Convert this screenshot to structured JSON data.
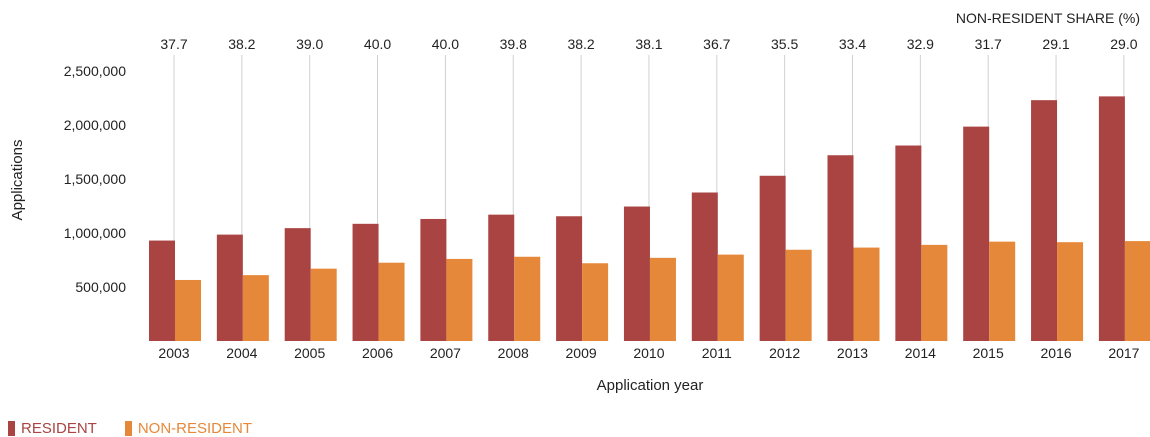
{
  "chart_data": {
    "type": "bar",
    "categories": [
      "2003",
      "2004",
      "2005",
      "2006",
      "2007",
      "2008",
      "2009",
      "2010",
      "2011",
      "2012",
      "2013",
      "2014",
      "2015",
      "2016",
      "2017"
    ],
    "series": [
      {
        "name": "RESIDENT",
        "color": "#a94442",
        "values": [
          930000,
          985000,
          1045000,
          1085000,
          1130000,
          1170000,
          1155000,
          1245000,
          1375000,
          1530000,
          1720000,
          1810000,
          1985000,
          2230000,
          2265000
        ]
      },
      {
        "name": "NON-RESIDENT",
        "color": "#e6883a",
        "values": [
          565000,
          610000,
          670000,
          725000,
          760000,
          780000,
          720000,
          770000,
          800000,
          845000,
          865000,
          890000,
          920000,
          915000,
          925000
        ]
      }
    ],
    "share_label": "NON-RESIDENT SHARE (%)",
    "share_values": [
      "37.7",
      "38.2",
      "39.0",
      "40.0",
      "40.0",
      "39.8",
      "38.2",
      "38.1",
      "36.7",
      "35.5",
      "33.4",
      "32.9",
      "31.7",
      "29.1",
      "29.0"
    ],
    "xlabel": "Application year",
    "ylabel": "Applications",
    "y_ticks": [
      500000,
      1000000,
      1500000,
      2000000,
      2500000
    ],
    "y_tick_labels": [
      "500,000",
      "1,000,000",
      "1,500,000",
      "2,000,000",
      "2,500,000"
    ],
    "ylim": [
      0,
      2500000
    ],
    "grid": "vertical",
    "legend_position": "bottom-left"
  }
}
